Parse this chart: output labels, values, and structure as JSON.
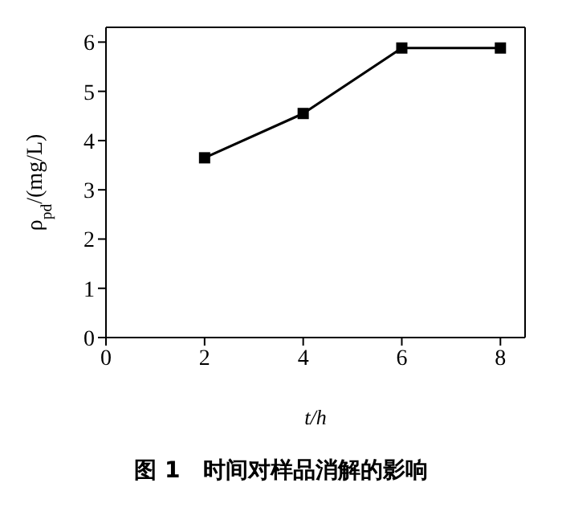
{
  "chart_data": {
    "type": "line",
    "title": "图 1　时间对样品消解的影响",
    "xlabel": "t/h",
    "ylabel": "ρ$_{pd}$/(mg/L)",
    "x": [
      2,
      4,
      6,
      8
    ],
    "series": [
      {
        "color": "#000000",
        "values": [
          3.65,
          4.55,
          5.88,
          5.88
        ]
      }
    ],
    "xlim": [
      0,
      8.5
    ],
    "xticks": [
      0,
      2,
      4,
      6,
      8
    ],
    "ylim": [
      0,
      6.3
    ],
    "yticks": [
      0,
      1,
      2,
      3,
      4,
      5,
      6
    ],
    "marker": "square",
    "line_style": "solid"
  }
}
